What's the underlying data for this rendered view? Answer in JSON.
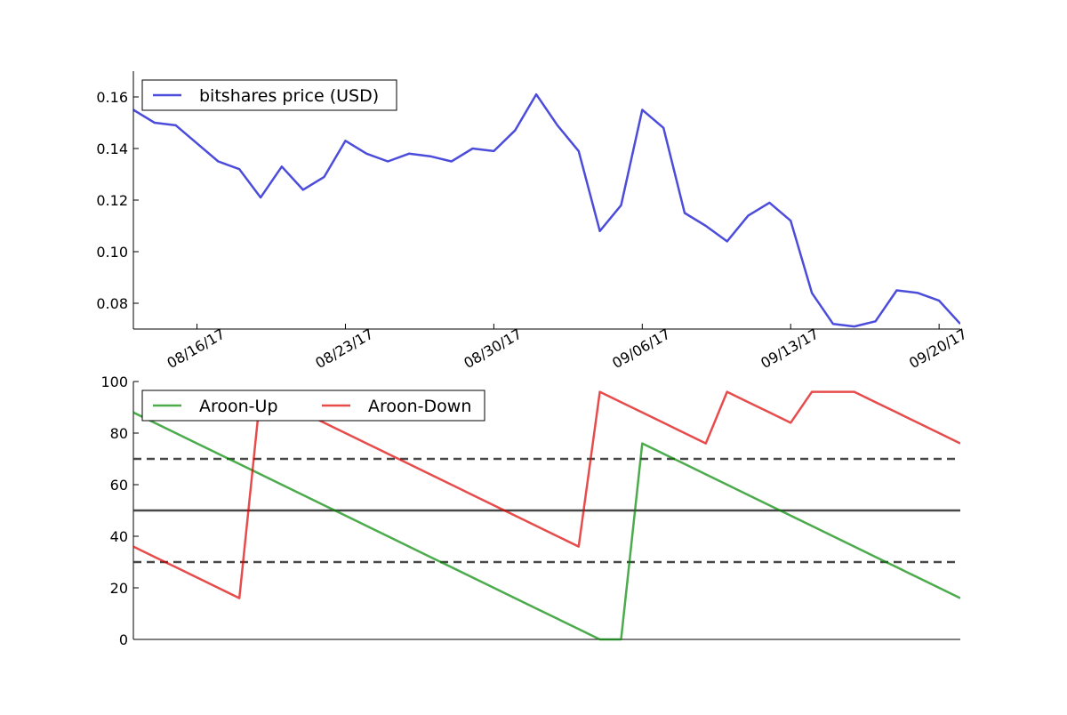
{
  "chart_data": [
    {
      "type": "line",
      "x": [
        "08/13/17",
        "08/14/17",
        "08/15/17",
        "08/16/17",
        "08/17/17",
        "08/18/17",
        "08/19/17",
        "08/20/17",
        "08/21/17",
        "08/22/17",
        "08/23/17",
        "08/24/17",
        "08/25/17",
        "08/26/17",
        "08/27/17",
        "08/28/17",
        "08/29/17",
        "08/30/17",
        "08/31/17",
        "09/01/17",
        "09/02/17",
        "09/03/17",
        "09/04/17",
        "09/05/17",
        "09/06/17",
        "09/07/17",
        "09/08/17",
        "09/09/17",
        "09/10/17",
        "09/11/17",
        "09/12/17",
        "09/13/17",
        "09/14/17",
        "09/15/17",
        "09/16/17",
        "09/17/17",
        "09/18/17",
        "09/19/17",
        "09/20/17",
        "09/21/17"
      ],
      "series": [
        {
          "name": "bitshares price (USD)",
          "color": "#0000cc",
          "values": [
            0.155,
            0.15,
            0.149,
            0.142,
            0.135,
            0.132,
            0.121,
            0.133,
            0.124,
            0.129,
            0.143,
            0.138,
            0.135,
            0.138,
            0.137,
            0.135,
            0.14,
            0.139,
            0.147,
            0.161,
            0.149,
            0.139,
            0.108,
            0.118,
            0.155,
            0.148,
            0.115,
            0.11,
            0.104,
            0.114,
            0.119,
            0.112,
            0.084,
            0.072,
            0.071,
            0.073,
            0.085,
            0.084,
            0.081,
            0.072
          ]
        }
      ],
      "ylim": [
        0.07,
        0.17
      ],
      "yticks": [
        "0.08",
        "0.10",
        "0.12",
        "0.14",
        "0.16"
      ],
      "xtick_labels": [
        "08/16/17",
        "08/23/17",
        "08/30/17",
        "09/06/17",
        "09/13/17",
        "09/20/17"
      ],
      "legend": "top-left",
      "grid": false
    },
    {
      "type": "line",
      "x": [
        "08/13/17",
        "08/14/17",
        "08/15/17",
        "08/16/17",
        "08/17/17",
        "08/18/17",
        "08/19/17",
        "08/20/17",
        "08/21/17",
        "08/22/17",
        "08/23/17",
        "08/24/17",
        "08/25/17",
        "08/26/17",
        "08/27/17",
        "08/28/17",
        "08/29/17",
        "08/30/17",
        "08/31/17",
        "09/01/17",
        "09/02/17",
        "09/03/17",
        "09/04/17",
        "09/05/17",
        "09/06/17",
        "09/07/17",
        "09/08/17",
        "09/09/17",
        "09/10/17",
        "09/11/17",
        "09/12/17",
        "09/13/17",
        "09/14/17",
        "09/15/17",
        "09/16/17",
        "09/17/17",
        "09/18/17",
        "09/19/17",
        "09/20/17",
        "09/21/17"
      ],
      "series": [
        {
          "name": "Aroon-Up",
          "color": "#008800",
          "values": [
            88,
            84,
            80,
            76,
            72,
            68,
            64,
            60,
            56,
            52,
            48,
            44,
            40,
            36,
            32,
            28,
            24,
            20,
            16,
            12,
            8,
            4,
            0,
            0,
            76,
            72,
            68,
            64,
            60,
            56,
            52,
            48,
            44,
            40,
            36,
            32,
            28,
            24,
            20,
            16
          ]
        },
        {
          "name": "Aroon-Down",
          "color": "#dd0000",
          "values": [
            36,
            32,
            28,
            24,
            20,
            16,
            96,
            92,
            88,
            84,
            80,
            76,
            72,
            68,
            64,
            60,
            56,
            52,
            48,
            44,
            40,
            36,
            96,
            92,
            88,
            84,
            80,
            76,
            96,
            92,
            88,
            84,
            96,
            96,
            96,
            92,
            88,
            84,
            80,
            76
          ]
        }
      ],
      "reference_lines": [
        30,
        50,
        70
      ],
      "ylim": [
        0,
        100
      ],
      "yticks": [
        "0",
        "20",
        "40",
        "60",
        "80",
        "100"
      ],
      "legend": "top-left",
      "grid": false
    }
  ]
}
